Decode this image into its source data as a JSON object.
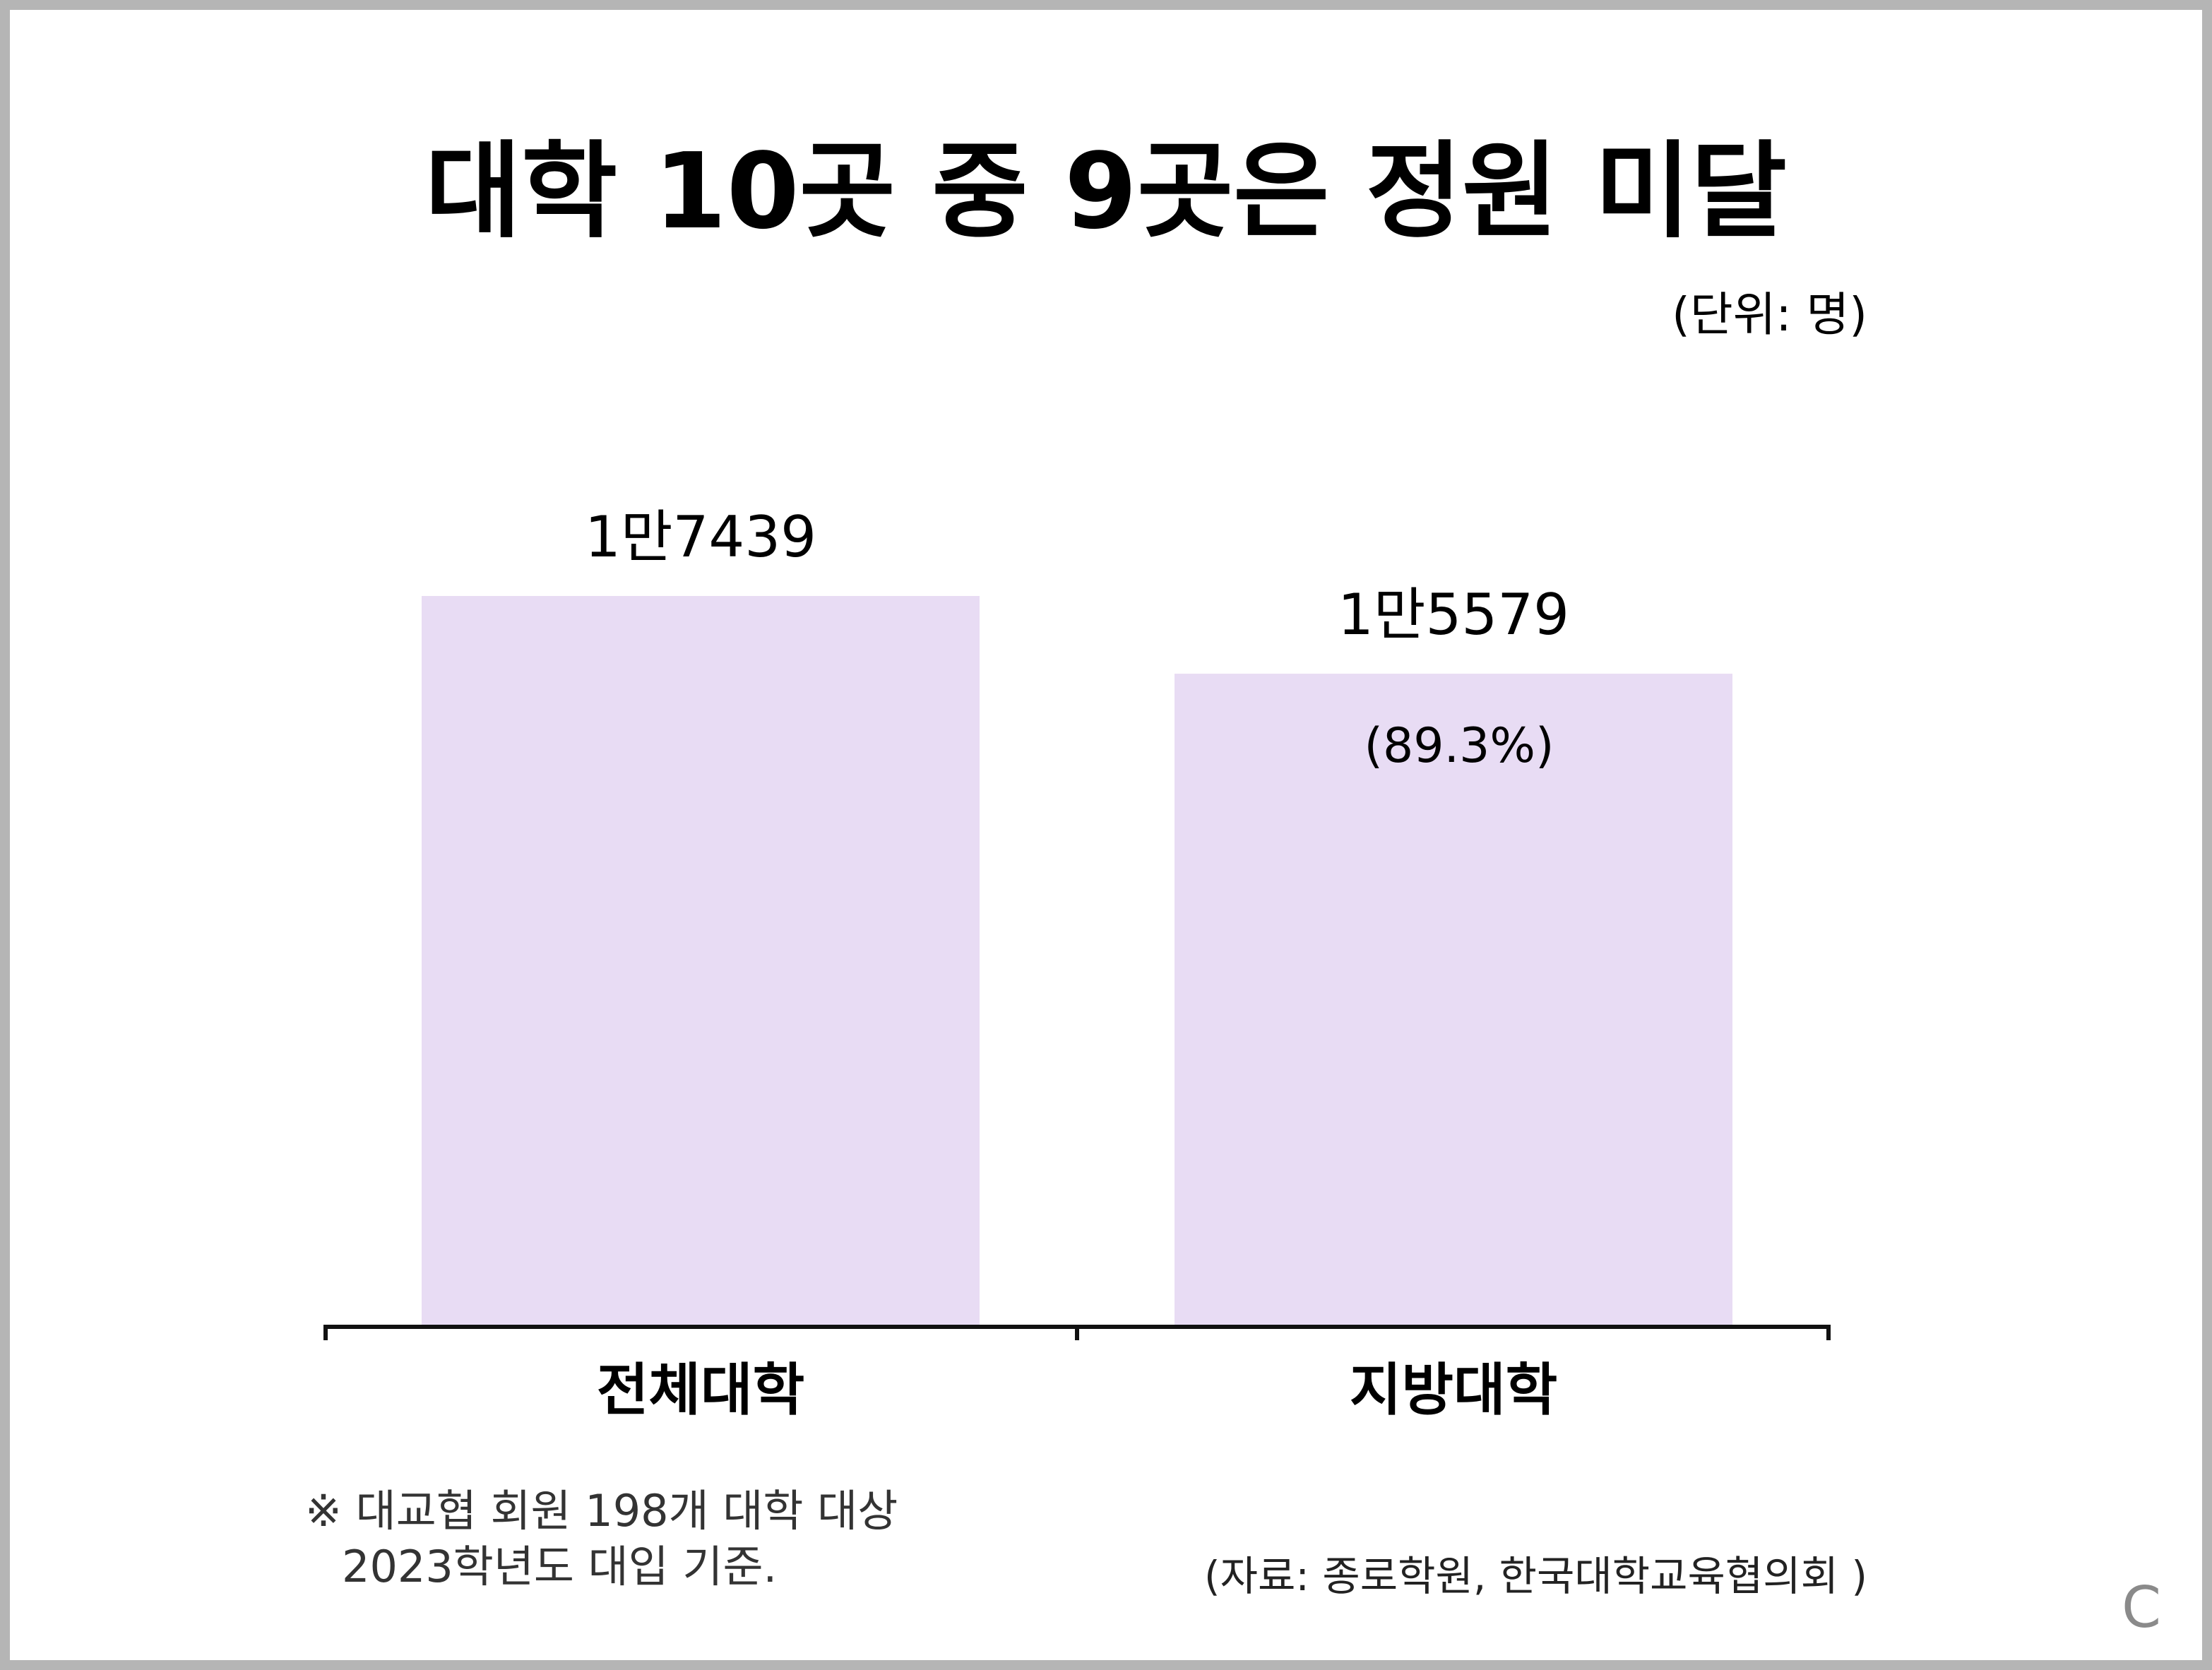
{
  "chart_data": {
    "type": "bar",
    "title": "대학 10곳 중 9곳은 정원 미달",
    "unit_label": "(단위: 명)",
    "categories": [
      "전체대학",
      "지방대학"
    ],
    "values": [
      17439,
      15579
    ],
    "value_labels": [
      "1만7439",
      "1만5579"
    ],
    "sub_labels": [
      "",
      "(89.3%)"
    ],
    "ylim": [
      0,
      17439
    ],
    "grid": false,
    "bar_color": "#e8dcf4",
    "axis_color": "#111111"
  },
  "footnote": {
    "line1": "※ 대교협 회원 198개 대학 대상",
    "line2": "2023학년도 대입 기준."
  },
  "source": "(자료: 종로학원, 한국대학교육협의회 )",
  "corner_mark": "C"
}
